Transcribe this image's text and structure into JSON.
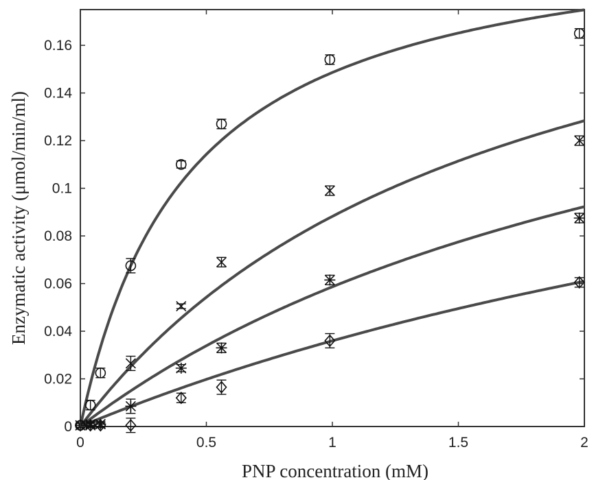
{
  "chart_data": {
    "type": "scatter",
    "title": "",
    "xlabel": "PNP concentration (mM)",
    "ylabel": "Enzymatic activity (μmol/min/ml)",
    "xlim": [
      0,
      2
    ],
    "ylim": [
      0,
      0.175
    ],
    "xticks": [
      0,
      0.5,
      1,
      1.5,
      2
    ],
    "xtick_labels": [
      "0",
      "0.5",
      "1",
      "1.5",
      "2"
    ],
    "yticks": [
      0,
      0.02,
      0.04,
      0.06,
      0.08,
      0.1,
      0.12,
      0.14,
      0.16
    ],
    "ytick_labels": [
      "0",
      "0.02",
      "0.04",
      "0.06",
      "0.08",
      "0.1",
      "0.12",
      "0.14",
      "0.16"
    ],
    "grid": false,
    "legend": "none",
    "colors": {
      "curve": "#4a4a4a",
      "marker": "#111111",
      "axis": "#333333"
    },
    "series": [
      {
        "marker": "circle",
        "points": [
          {
            "x": 0,
            "y": 0.0005,
            "err": 0.001
          },
          {
            "x": 0.04,
            "y": 0.009,
            "err": 0.002
          },
          {
            "x": 0.08,
            "y": 0.0225,
            "err": 0.002
          },
          {
            "x": 0.2,
            "y": 0.0675,
            "err": 0.003
          },
          {
            "x": 0.4,
            "y": 0.11,
            "err": 0.0015
          },
          {
            "x": 0.56,
            "y": 0.127,
            "err": 0.002
          },
          {
            "x": 0.99,
            "y": 0.154,
            "err": 0.002
          },
          {
            "x": 1.98,
            "y": 0.165,
            "err": 0.002
          }
        ],
        "fit": {
          "vmax": 0.2125,
          "km": 0.43
        }
      },
      {
        "marker": "x",
        "points": [
          {
            "x": 0,
            "y": 0.0005,
            "err": 0.001
          },
          {
            "x": 0.04,
            "y": 0.001,
            "err": 0.001
          },
          {
            "x": 0.08,
            "y": 0.001,
            "err": 0.001
          },
          {
            "x": 0.2,
            "y": 0.0265,
            "err": 0.003
          },
          {
            "x": 0.4,
            "y": 0.0505,
            "err": 0.001
          },
          {
            "x": 0.56,
            "y": 0.069,
            "err": 0.002
          },
          {
            "x": 0.99,
            "y": 0.099,
            "err": 0.002
          },
          {
            "x": 1.98,
            "y": 0.12,
            "err": 0.002
          }
        ],
        "fit": {
          "vmax": 0.2355,
          "km": 1.67
        }
      },
      {
        "marker": "asterisk",
        "points": [
          {
            "x": 0,
            "y": 0.0005,
            "err": 0.001
          },
          {
            "x": 0.04,
            "y": 0.0005,
            "err": 0.001
          },
          {
            "x": 0.08,
            "y": 0.001,
            "err": 0.001
          },
          {
            "x": 0.2,
            "y": 0.0085,
            "err": 0.003
          },
          {
            "x": 0.4,
            "y": 0.0245,
            "err": 0.0015
          },
          {
            "x": 0.56,
            "y": 0.033,
            "err": 0.002
          },
          {
            "x": 0.99,
            "y": 0.0615,
            "err": 0.002
          },
          {
            "x": 1.98,
            "y": 0.0875,
            "err": 0.002
          }
        ],
        "fit": {
          "vmax": 0.2164,
          "km": 2.69
        }
      },
      {
        "marker": "diamond",
        "points": [
          {
            "x": 0,
            "y": 0.0005,
            "err": 0.001
          },
          {
            "x": 0.04,
            "y": 0.0005,
            "err": 0.001
          },
          {
            "x": 0.08,
            "y": 0.0005,
            "err": 0.001
          },
          {
            "x": 0.2,
            "y": 0.0005,
            "err": 0.003
          },
          {
            "x": 0.4,
            "y": 0.012,
            "err": 0.002
          },
          {
            "x": 0.56,
            "y": 0.0165,
            "err": 0.003
          },
          {
            "x": 0.99,
            "y": 0.036,
            "err": 0.003
          },
          {
            "x": 1.98,
            "y": 0.0605,
            "err": 0.002
          }
        ],
        "fit": {
          "vmax": 0.1987,
          "km": 4.52
        }
      }
    ]
  }
}
